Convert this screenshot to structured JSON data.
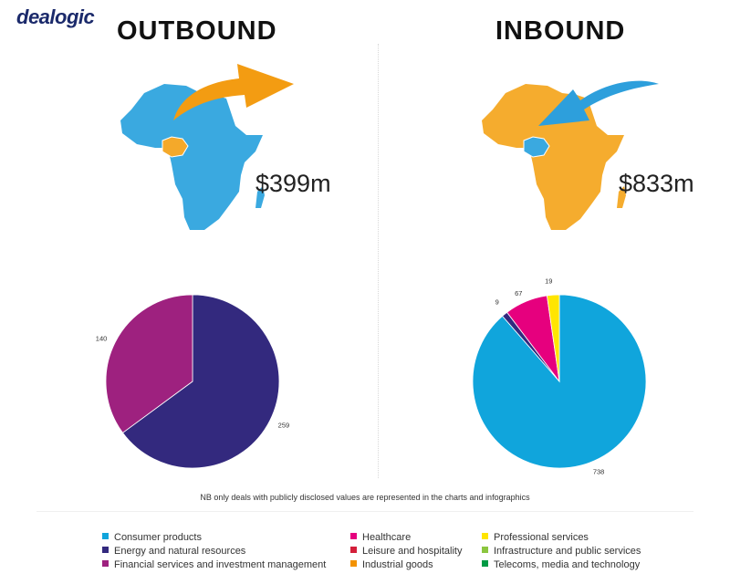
{
  "brand": {
    "logo_text": "dealogic"
  },
  "panels": {
    "outbound": {
      "heading": "OUTBOUND",
      "amount": "$399m"
    },
    "inbound": {
      "heading": "INBOUND",
      "amount": "$833m"
    }
  },
  "colors": {
    "outbound_map": "#3aa9e0",
    "outbound_highlight": "#f4a92a",
    "outbound_arrow": "#f39c12",
    "inbound_map": "#f5ac2e",
    "inbound_highlight": "#3aa9e0",
    "inbound_arrow": "#2d9fdc"
  },
  "footnote": "NB only deals with publicly disclosed values are represented in the charts and infographics",
  "legend": [
    {
      "label": "Consumer products",
      "color": "#10a5dc"
    },
    {
      "label": "Energy and natural resources",
      "color": "#33297e"
    },
    {
      "label": "Financial services and investment management",
      "color": "#9e217f"
    },
    {
      "label": "Healthcare",
      "color": "#e6007e"
    },
    {
      "label": "Leisure and hospitality",
      "color": "#d41f3a"
    },
    {
      "label": "Industrial goods",
      "color": "#f39200"
    },
    {
      "label": "Professional services",
      "color": "#ffe500"
    },
    {
      "label": "Infrastructure and public services",
      "color": "#8cc63f"
    },
    {
      "label": "Telecoms, media and technology",
      "color": "#009a44"
    }
  ],
  "chart_data": [
    {
      "type": "pie",
      "title": "OUTBOUND",
      "total_label": "$399m",
      "slices": [
        {
          "label": "259",
          "value": 259,
          "color": "#33297e",
          "sector": "Energy and natural resources"
        },
        {
          "label": "140",
          "value": 140,
          "color": "#9e217f",
          "sector": "Financial services and investment management"
        }
      ]
    },
    {
      "type": "pie",
      "title": "INBOUND",
      "total_label": "$833m",
      "slices": [
        {
          "label": "738",
          "value": 738,
          "color": "#10a5dc",
          "sector": "Consumer products"
        },
        {
          "label": "9",
          "value": 9,
          "color": "#33297e",
          "sector": "Energy and natural resources"
        },
        {
          "label": "67",
          "value": 67,
          "color": "#e6007e",
          "sector": "Healthcare"
        },
        {
          "label": "19",
          "value": 19,
          "color": "#ffe500",
          "sector": "Professional services"
        }
      ]
    }
  ]
}
